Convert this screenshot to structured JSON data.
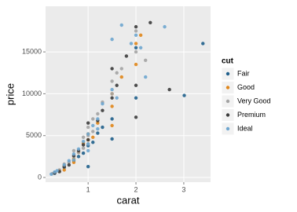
{
  "chart_data": {
    "type": "scatter",
    "x_label": "carat",
    "y_label": "price",
    "xlim": [
      0.11,
      3.56
    ],
    "ylim": [
      -560,
      20450
    ],
    "xticks": [
      1,
      2,
      3
    ],
    "yticks": [
      0,
      5000,
      10000,
      15000
    ],
    "grid": true,
    "legend_title": "cut",
    "legend_position": "right",
    "series": [
      {
        "name": "Fair",
        "color": "#1f5f8b",
        "x": [
          0.3,
          0.5,
          0.7,
          0.9,
          1.0,
          1.0,
          1.1,
          1.2,
          1.5,
          1.5,
          2.0,
          2.0,
          3.01,
          3.4,
          0.8,
          1.3
        ],
        "y": [
          500,
          1200,
          2000,
          2900,
          3800,
          1300,
          4200,
          5300,
          7000,
          4600,
          9500,
          15500,
          9800,
          16000,
          2500,
          6000
        ]
      },
      {
        "name": "Good",
        "color": "#e0861a",
        "x": [
          0.3,
          0.4,
          0.5,
          0.7,
          0.8,
          0.9,
          1.0,
          1.0,
          1.1,
          1.2,
          1.5,
          1.5,
          1.5,
          1.7,
          2.0,
          2.0,
          2.1,
          0.5,
          0.7
        ],
        "y": [
          600,
          800,
          1400,
          2200,
          3000,
          4100,
          4500,
          5200,
          4800,
          6500,
          8500,
          10000,
          6200,
          12000,
          16000,
          13500,
          17000,
          900,
          1800
        ]
      },
      {
        "name": "Very Good",
        "color": "#a3a3a3",
        "x": [
          0.25,
          0.3,
          0.4,
          0.5,
          0.6,
          0.7,
          0.7,
          0.8,
          0.9,
          1.0,
          1.0,
          1.1,
          1.2,
          1.3,
          1.5,
          1.5,
          1.6,
          1.7,
          2.0,
          2.0,
          2.2,
          0.9,
          1.0,
          1.1
        ],
        "y": [
          450,
          600,
          900,
          1600,
          1800,
          2500,
          3200,
          3000,
          3500,
          5000,
          6000,
          5500,
          7600,
          9000,
          10000,
          11500,
          12500,
          13000,
          15000,
          17500,
          14000,
          4800,
          4000,
          7000
        ]
      },
      {
        "name": "Premium",
        "color": "#3b3b3b",
        "x": [
          0.3,
          0.4,
          0.5,
          0.6,
          0.7,
          0.8,
          0.9,
          1.0,
          1.0,
          1.2,
          1.3,
          1.5,
          1.5,
          1.6,
          2.0,
          2.0,
          2.3,
          2.7,
          1.8,
          2.0
        ],
        "y": [
          550,
          700,
          1300,
          1500,
          2600,
          3200,
          3900,
          4500,
          6500,
          6800,
          8000,
          9500,
          13000,
          11000,
          18000,
          7200,
          18500,
          10500,
          14500,
          11000
        ]
      },
      {
        "name": "Ideal",
        "color": "#6ea6cf",
        "x": [
          0.23,
          0.3,
          0.35,
          0.5,
          0.6,
          0.7,
          0.8,
          0.9,
          1.0,
          1.0,
          1.1,
          1.2,
          1.3,
          1.5,
          1.5,
          1.6,
          1.7,
          1.9,
          2.0,
          2.1,
          2.2,
          2.6,
          1.0,
          0.7,
          1.2
        ],
        "y": [
          400,
          650,
          800,
          1500,
          2000,
          2800,
          3400,
          4300,
          5200,
          4000,
          6200,
          7000,
          8800,
          10500,
          16500,
          9500,
          18200,
          16000,
          17000,
          15500,
          12000,
          18000,
          3200,
          2100,
          5800
        ]
      }
    ]
  }
}
